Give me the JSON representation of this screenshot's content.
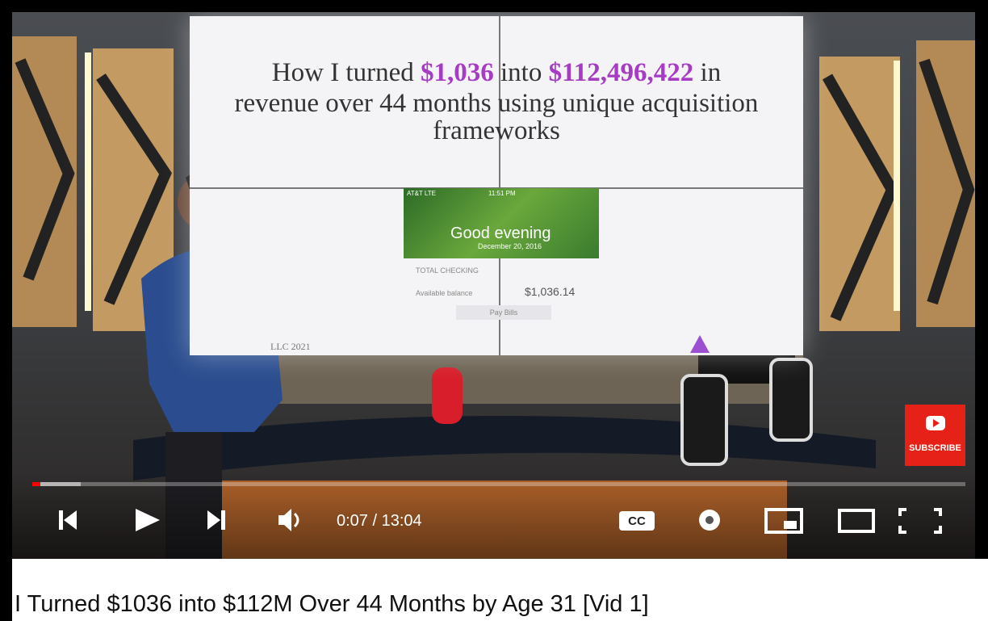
{
  "slide": {
    "text_before": "How I turned ",
    "amount1": "$1,036",
    "text_middle": " into ",
    "amount2": "$112,496,422",
    "text_after": " in",
    "line2": "revenue over 44 months using unique acquisition",
    "line3": "frameworks",
    "footer": "LLC 2021"
  },
  "phone": {
    "status": "AT&T LTE",
    "clock": "11:51 PM",
    "greeting": "Good evening",
    "date": "December 20, 2016",
    "account": "TOTAL CHECKING",
    "balance_label": "Available balance",
    "balance": "$1,036.14",
    "button": "Pay Bills"
  },
  "player": {
    "time": "0:07 / 13:04",
    "captions": "CC",
    "subscribe": "SUBSCRIBE"
  },
  "video_title": "I Turned $1036 into $112M Over 44 Months by Age 31 [Vid 1]"
}
